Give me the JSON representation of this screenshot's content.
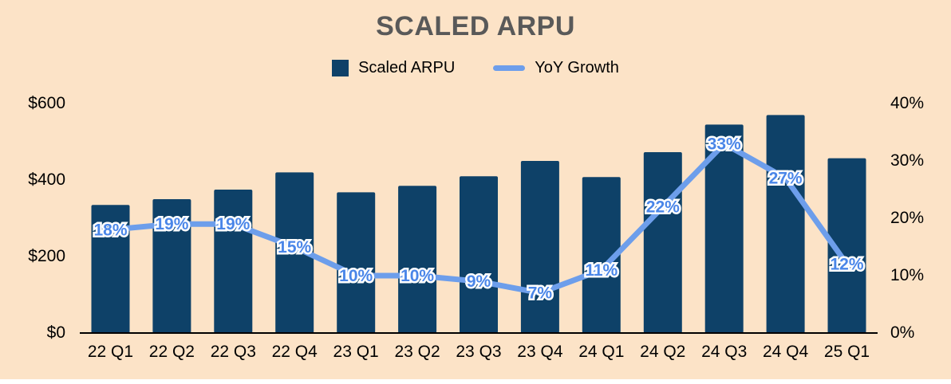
{
  "page": {
    "background": "#FCE3C7"
  },
  "chart_data": {
    "type": "bar",
    "subtype": "bar-with-line-overlay",
    "title": "SCALED ARPU",
    "categories": [
      "22 Q1",
      "22 Q2",
      "22 Q3",
      "22 Q4",
      "23 Q1",
      "23 Q2",
      "23 Q3",
      "23 Q4",
      "24 Q1",
      "24 Q2",
      "24 Q3",
      "24 Q4",
      "25 Q1"
    ],
    "series": [
      {
        "name": "Scaled ARPU",
        "type": "bar",
        "axis": "left",
        "color": "#0E4168",
        "values": [
          335,
          350,
          375,
          420,
          368,
          385,
          410,
          450,
          408,
          473,
          545,
          570,
          457
        ]
      },
      {
        "name": "YoY Growth",
        "type": "line",
        "axis": "right",
        "color": "#6D9EEB",
        "label_color": "#4A86E8",
        "values": [
          18,
          19,
          19,
          15,
          10,
          10,
          9,
          7,
          11,
          22,
          33,
          27,
          12
        ],
        "labels": [
          "18%",
          "19%",
          "19%",
          "15%",
          "10%",
          "10%",
          "9%",
          "7%",
          "11%",
          "22%",
          "33%",
          "27%",
          "12%"
        ]
      }
    ],
    "left_axis": {
      "min": 0,
      "max": 600,
      "ticks": [
        {
          "label": "$0",
          "value": 0
        },
        {
          "label": "$200",
          "value": 200
        },
        {
          "label": "$400",
          "value": 400
        },
        {
          "label": "$600",
          "value": 600
        }
      ]
    },
    "right_axis": {
      "min": 0,
      "max": 40,
      "ticks": [
        {
          "label": "0%",
          "value": 0
        },
        {
          "label": "10%",
          "value": 10
        },
        {
          "label": "20%",
          "value": 20
        },
        {
          "label": "30%",
          "value": 30
        },
        {
          "label": "40%",
          "value": 40
        }
      ]
    },
    "legend": [
      {
        "label": "Scaled ARPU",
        "swatch": "square",
        "color": "#0E4168"
      },
      {
        "label": "YoY Growth",
        "swatch": "line",
        "color": "#6D9EEB"
      }
    ],
    "grid": false,
    "legend_position": "top-center"
  }
}
